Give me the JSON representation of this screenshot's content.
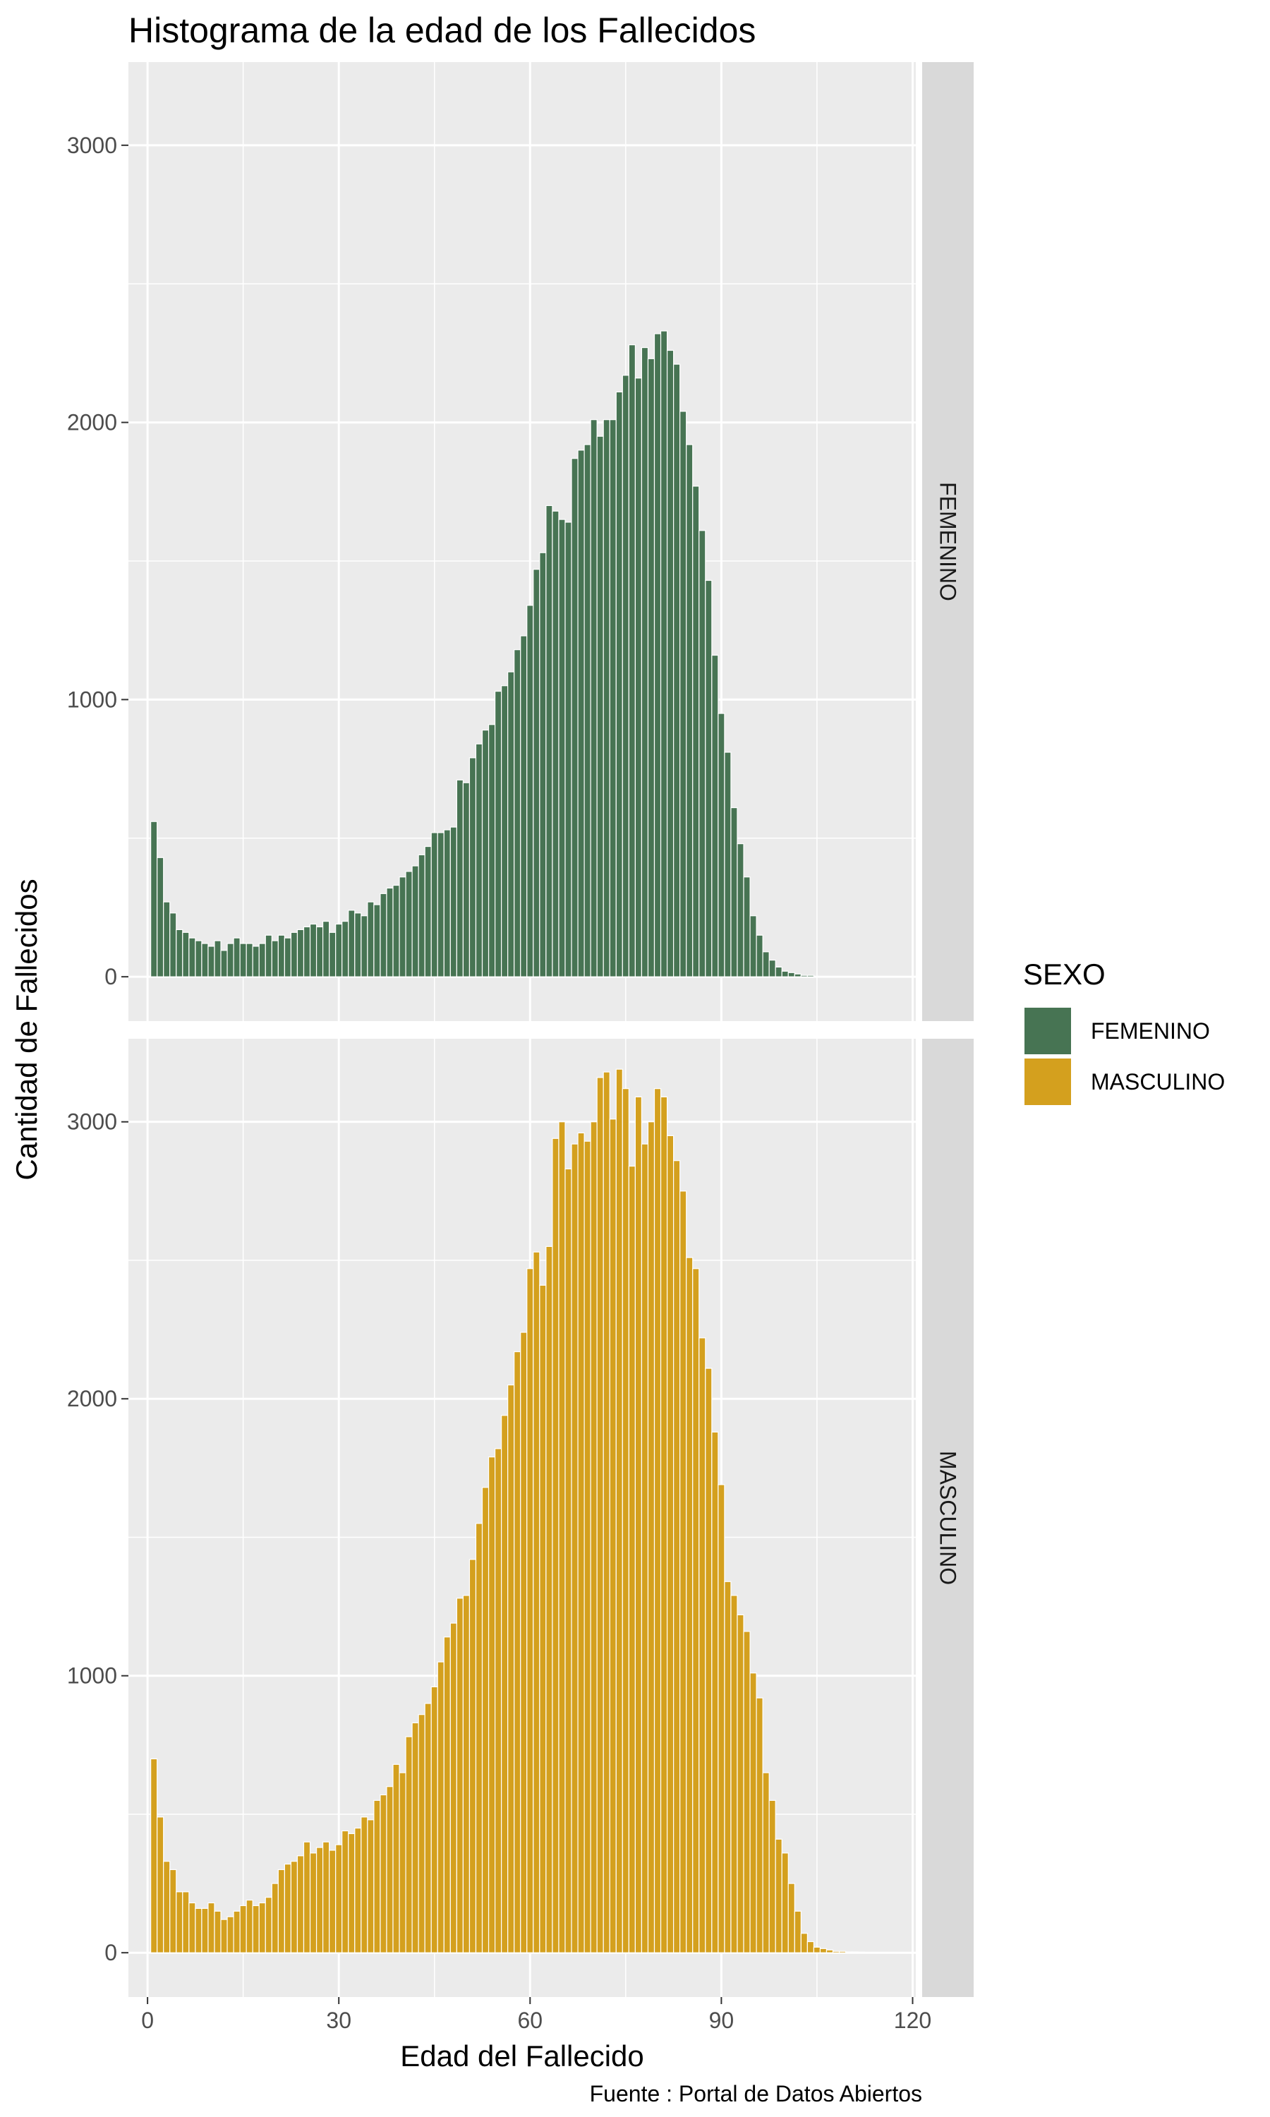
{
  "chart_data": {
    "type": "bar",
    "chart_kind": "histogram",
    "title": "Histograma de la edad de los Fallecidos",
    "xlabel": "Edad del Fallecido",
    "ylabel": "Cantidad de Fallecidos",
    "caption": "Fuente : Portal de Datos Abiertos",
    "legend_title": "SEXO",
    "legend_position": "right",
    "grid": true,
    "x_ticks": [
      0,
      30,
      60,
      90,
      120
    ],
    "y_ticks": [
      0,
      1000,
      2000,
      3000
    ],
    "xlim": [
      -3,
      120.5
    ],
    "ylim": [
      -160,
      3300
    ],
    "bin_width": 1,
    "panels": [
      {
        "strip_label": "FEMENINO",
        "color": "#477453",
        "x_start": 1,
        "counts": [
          560,
          430,
          270,
          230,
          170,
          160,
          140,
          130,
          120,
          110,
          130,
          95,
          120,
          140,
          120,
          120,
          110,
          120,
          150,
          130,
          150,
          140,
          160,
          170,
          180,
          190,
          180,
          200,
          160,
          190,
          200,
          240,
          230,
          220,
          270,
          260,
          300,
          320,
          330,
          360,
          380,
          400,
          440,
          470,
          520,
          520,
          530,
          540,
          710,
          700,
          790,
          840,
          890,
          910,
          1030,
          1050,
          1100,
          1180,
          1230,
          1340,
          1470,
          1530,
          1700,
          1680,
          1650,
          1640,
          1870,
          1900,
          1920,
          2010,
          1950,
          2010,
          2010,
          2110,
          2170,
          2280,
          2160,
          2270,
          2230,
          2320,
          2330,
          2260,
          2210,
          2040,
          1920,
          1770,
          1610,
          1430,
          1160,
          950,
          810,
          610,
          480,
          360,
          220,
          150,
          90,
          60,
          35,
          20,
          15,
          10,
          5,
          5
        ]
      },
      {
        "strip_label": "MASCULINO",
        "color": "#D4A01E",
        "x_start": 1,
        "counts": [
          700,
          490,
          330,
          300,
          220,
          220,
          180,
          160,
          160,
          180,
          150,
          120,
          130,
          150,
          170,
          190,
          170,
          180,
          200,
          250,
          300,
          320,
          330,
          350,
          400,
          360,
          380,
          400,
          370,
          390,
          440,
          430,
          450,
          490,
          480,
          550,
          570,
          600,
          680,
          650,
          780,
          830,
          860,
          900,
          960,
          1050,
          1140,
          1190,
          1280,
          1290,
          1420,
          1550,
          1680,
          1790,
          1820,
          1940,
          2050,
          2170,
          2240,
          2470,
          2530,
          2410,
          2550,
          2940,
          3000,
          2830,
          2920,
          2960,
          2930,
          3000,
          3160,
          3180,
          3010,
          3190,
          3120,
          2840,
          3090,
          2920,
          3000,
          3120,
          3090,
          2950,
          2860,
          2750,
          2510,
          2470,
          2220,
          2110,
          1880,
          1690,
          1340,
          1290,
          1220,
          1160,
          1010,
          920,
          650,
          550,
          410,
          360,
          250,
          150,
          70,
          40,
          20,
          15,
          10,
          5,
          5,
          3,
          3,
          2
        ]
      }
    ]
  }
}
